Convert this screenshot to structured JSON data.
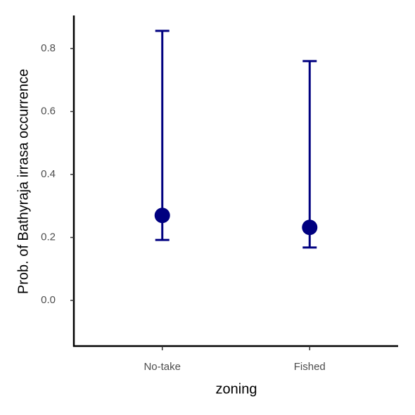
{
  "chart_data": {
    "type": "errorbar",
    "x_label": "zoning",
    "y_label": "Prob. of  Bathyraja irrasa  occurrence",
    "categories": [
      "No-take",
      "Fished"
    ],
    "series": [
      {
        "color": "#000080",
        "values": [
          0.27,
          0.232
        ],
        "lower": [
          0.192,
          0.168
        ],
        "upper": [
          0.856,
          0.76
        ]
      }
    ],
    "ylim": [
      -0.145,
      0.905
    ],
    "yticks": [
      {
        "value": 0,
        "label": "0.0"
      },
      0.2,
      0.4,
      0.6,
      0.8
    ],
    "grid": false
  }
}
